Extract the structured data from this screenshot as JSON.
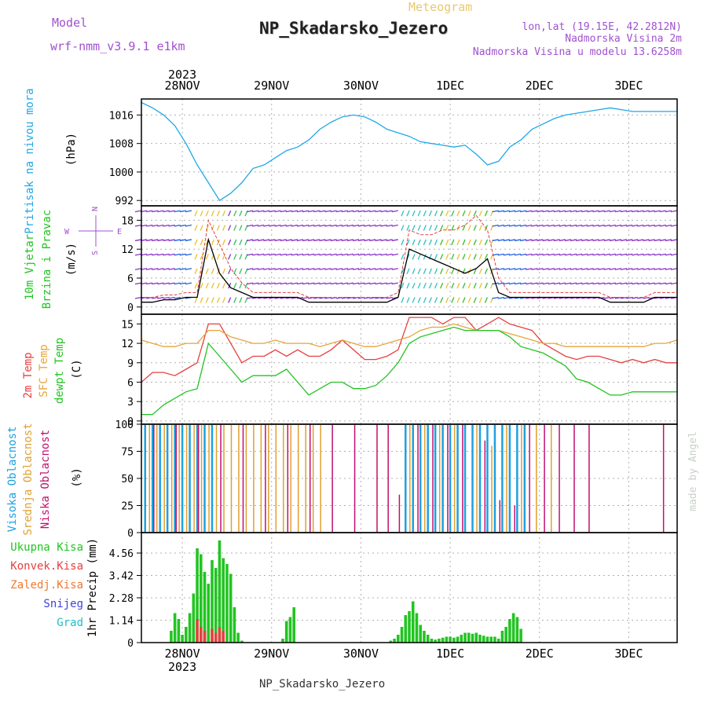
{
  "header": {
    "model_label": "Model",
    "model_name": "wrf-nmm_v3.9.1  e1km",
    "meteogram_label": "Meteogram",
    "station": "NP_Skadarsko_Jezero",
    "lonlat": "lon,lat (19.15E, 42.2812N)",
    "altitude": "Nadmorska Visina 2m",
    "model_altitude": "Nadmorska Visina u modelu 13.6258m",
    "footer_station": "NP_Skadarsko_Jezero",
    "credit": "made by Angel"
  },
  "time_axis": {
    "year": "2023",
    "days": [
      "28NOV",
      "29NOV",
      "30NOV",
      "1DEC",
      "2DEC",
      "3DEC"
    ],
    "start_hour_offset": 13,
    "total_hours": 144
  },
  "colors": {
    "pressure": "#22a7e6",
    "temp2m": "#e64040",
    "sfc_temp": "#e6a43a",
    "dewpoint": "#22c422",
    "speed": "#000000",
    "gust": "#e64040",
    "high_cloud": "#1fa0e0",
    "mid_cloud": "#e0a030",
    "low_cloud": "#c01070",
    "total_precip": "#22c422",
    "conv_precip": "#e64040",
    "frozen": "#f07830",
    "snow": "#4040e0",
    "graupel": "#20c0c0",
    "title_purple": "#a050d0"
  },
  "chart_data": [
    {
      "type": "line",
      "title": "Pritisak na nivou mora",
      "ylabel": "(hPa)",
      "yticks": [
        992,
        1000,
        1008,
        1016
      ],
      "ylim": [
        990.5,
        1020.5
      ],
      "grid": true,
      "series": [
        {
          "name": "Pritisak na nivou mora",
          "x": [
            0,
            3,
            6,
            9,
            12,
            15,
            18,
            21,
            24,
            27,
            30,
            33,
            36,
            39,
            42,
            45,
            48,
            51,
            54,
            57,
            60,
            63,
            66,
            69,
            72,
            75,
            78,
            81,
            84,
            87,
            90,
            93,
            96,
            99,
            102,
            105,
            108,
            111,
            114,
            117,
            120,
            123,
            126,
            129,
            132,
            135,
            138,
            141,
            144
          ],
          "values": [
            1019.5,
            1018,
            1016,
            1013,
            1008,
            1002,
            997,
            992,
            994,
            997,
            1001,
            1002,
            1004,
            1006,
            1007,
            1009,
            1012,
            1014,
            1015.5,
            1016,
            1015.5,
            1014,
            1012,
            1011,
            1010,
            1008.5,
            1008,
            1007.5,
            1007,
            1007.5,
            1005,
            1002,
            1003,
            1007,
            1009,
            1012,
            1013.5,
            1015,
            1016,
            1016.5,
            1017,
            1017.5,
            1018,
            1017.5,
            1017,
            1017,
            1017,
            1017,
            1017
          ]
        }
      ]
    },
    {
      "type": "line",
      "title": "10m Vjetar Brzina i Pravac",
      "ylabel": "(m/s)",
      "yticks": [
        0,
        6,
        12,
        18
      ],
      "ylim": [
        -1.5,
        21
      ],
      "grid": true,
      "compass": {
        "north": "N",
        "south": "S",
        "east": "E",
        "west": "W"
      },
      "series": [
        {
          "name": "speed",
          "x": [
            0,
            3,
            6,
            9,
            12,
            15,
            18,
            21,
            24,
            27,
            30,
            33,
            36,
            39,
            42,
            45,
            48,
            51,
            54,
            57,
            60,
            63,
            66,
            69,
            72,
            75,
            78,
            81,
            84,
            87,
            90,
            93,
            96,
            99,
            102,
            105,
            108,
            111,
            114,
            117,
            120,
            123,
            126,
            129,
            132,
            135,
            138,
            141,
            144
          ],
          "values": [
            1,
            1,
            1.5,
            1.5,
            2,
            2,
            14,
            7,
            4,
            3,
            2,
            2,
            2,
            2,
            2,
            1,
            1,
            1,
            1,
            1,
            1,
            1,
            1,
            2,
            12,
            11,
            10,
            9,
            8,
            7,
            8,
            10,
            3,
            2,
            2,
            2,
            2,
            2,
            2,
            2,
            2,
            2,
            1,
            1,
            1,
            1,
            2,
            2,
            2
          ]
        },
        {
          "name": "gust",
          "x": [
            0,
            3,
            6,
            9,
            12,
            15,
            18,
            21,
            24,
            27,
            30,
            33,
            36,
            39,
            42,
            45,
            48,
            51,
            54,
            57,
            60,
            63,
            66,
            69,
            72,
            75,
            78,
            81,
            84,
            87,
            90,
            93,
            96,
            99,
            102,
            105,
            108,
            111,
            114,
            117,
            120,
            123,
            126,
            129,
            132,
            135,
            138,
            141,
            144
          ],
          "values": [
            2,
            2,
            2.5,
            2.5,
            3,
            3,
            18,
            13,
            8,
            5,
            3,
            3,
            3,
            3,
            3,
            2,
            2,
            2,
            2,
            2,
            2,
            2,
            2,
            3,
            16,
            15,
            15,
            16,
            16,
            17,
            19,
            16,
            6,
            3,
            3,
            3,
            3,
            3,
            3,
            3,
            3,
            3,
            2,
            2,
            2,
            2,
            3,
            3,
            3
          ]
        }
      ]
    },
    {
      "type": "line",
      "title": "2m Temp / SFC Temp / dewpt Temp",
      "ylabel": "(C)",
      "yticks": [
        0,
        3,
        6,
        9,
        12,
        15
      ],
      "ylim": [
        -0.5,
        16.5
      ],
      "grid": true,
      "series": [
        {
          "name": "2m Temp",
          "x": [
            0,
            3,
            6,
            9,
            12,
            15,
            18,
            21,
            24,
            27,
            30,
            33,
            36,
            39,
            42,
            45,
            48,
            51,
            54,
            57,
            60,
            63,
            66,
            69,
            72,
            75,
            78,
            81,
            84,
            87,
            90,
            93,
            96,
            99,
            102,
            105,
            108,
            111,
            114,
            117,
            120,
            123,
            126,
            129,
            132,
            135,
            138,
            141,
            144
          ],
          "values": [
            6,
            7.5,
            7.5,
            7,
            8,
            9,
            15,
            15,
            12,
            9,
            10,
            10,
            11,
            10,
            11,
            10,
            10,
            11,
            12.5,
            11,
            9.5,
            9.5,
            10,
            11,
            16,
            16,
            16,
            15,
            16,
            16,
            14,
            15,
            16,
            15,
            14.5,
            14,
            12,
            11,
            10,
            9.5,
            10,
            10,
            9.5,
            9,
            9.5,
            9,
            9.5,
            9,
            9
          ]
        },
        {
          "name": "SFC Temp",
          "x": [
            0,
            3,
            6,
            9,
            12,
            15,
            18,
            21,
            24,
            27,
            30,
            33,
            36,
            39,
            42,
            45,
            48,
            51,
            54,
            57,
            60,
            63,
            66,
            69,
            72,
            75,
            78,
            81,
            84,
            87,
            90,
            93,
            96,
            99,
            102,
            105,
            108,
            111,
            114,
            117,
            120,
            123,
            126,
            129,
            132,
            135,
            138,
            141,
            144
          ],
          "values": [
            12.5,
            12,
            11.5,
            11.5,
            12,
            12,
            14,
            14,
            13,
            12.5,
            12,
            12,
            12.5,
            12,
            12,
            12,
            11.5,
            12,
            12.5,
            12,
            11.5,
            11.5,
            12,
            12.5,
            13,
            14,
            14.5,
            14.5,
            15,
            14.5,
            14,
            14,
            14,
            13.5,
            13,
            12.5,
            12,
            12,
            11.5,
            11.5,
            11.5,
            11.5,
            11.5,
            11.5,
            11.5,
            11.5,
            12,
            12,
            12.5
          ]
        },
        {
          "name": "dewpt Temp",
          "x": [
            0,
            3,
            6,
            9,
            12,
            15,
            18,
            21,
            24,
            27,
            30,
            33,
            36,
            39,
            42,
            45,
            48,
            51,
            54,
            57,
            60,
            63,
            66,
            69,
            72,
            75,
            78,
            81,
            84,
            87,
            90,
            93,
            96,
            99,
            102,
            105,
            108,
            111,
            114,
            117,
            120,
            123,
            126,
            129,
            132,
            135,
            138,
            141,
            144
          ],
          "values": [
            1,
            1,
            2.5,
            3.5,
            4.5,
            5,
            12,
            10,
            8,
            6,
            7,
            7,
            7,
            8,
            6,
            4,
            5,
            6,
            6,
            5,
            5,
            5.5,
            7,
            9,
            12,
            13,
            13.5,
            14,
            14.5,
            14,
            14,
            14,
            14,
            13,
            11.5,
            11,
            10.5,
            9.5,
            8.5,
            6.5,
            6,
            5,
            4,
            4,
            4.5,
            4.5,
            4.5,
            4.5,
            4.5
          ]
        }
      ]
    },
    {
      "type": "bar",
      "title": "Visoka / Srednja / Niska Oblacnost",
      "ylabel": "(%)",
      "yticks": [
        0,
        25,
        50,
        75,
        100
      ],
      "ylim": [
        0,
        100
      ],
      "grid": true,
      "series": [
        {
          "name": "Visoka Oblacnost",
          "x": [
            1,
            3,
            5,
            7,
            9,
            11,
            13,
            15,
            17,
            19,
            71,
            73,
            75,
            77,
            79,
            81,
            83,
            85,
            87,
            89,
            91,
            93,
            95,
            97,
            99,
            101,
            103
          ],
          "values": [
            100,
            100,
            100,
            100,
            100,
            100,
            100,
            100,
            100,
            100,
            100,
            100,
            100,
            100,
            100,
            100,
            100,
            100,
            100,
            100,
            100,
            100,
            100,
            100,
            100,
            100,
            100
          ]
        },
        {
          "name": "Srednja Oblacnost",
          "x": [
            2,
            4,
            6,
            8,
            10,
            12,
            14,
            16,
            18,
            20,
            22,
            24,
            26,
            28,
            30,
            32,
            34,
            36,
            38,
            40,
            42,
            44,
            46,
            48,
            72,
            76,
            80,
            84,
            90,
            94,
            98,
            102,
            106,
            110
          ],
          "values": [
            100,
            100,
            100,
            100,
            100,
            100,
            100,
            100,
            100,
            100,
            100,
            100,
            100,
            100,
            100,
            100,
            100,
            100,
            100,
            100,
            100,
            100,
            100,
            100,
            100,
            100,
            100,
            100,
            100,
            80,
            100,
            100,
            100,
            100
          ]
        },
        {
          "name": "Niska Oblacnost",
          "x": [
            3,
            9,
            15,
            21,
            27,
            33,
            39,
            45,
            51,
            57,
            63,
            66,
            69,
            74,
            78,
            82,
            86,
            92,
            96,
            100,
            104,
            108,
            112,
            116,
            120,
            140
          ],
          "values": [
            100,
            100,
            100,
            100,
            100,
            100,
            100,
            100,
            100,
            100,
            100,
            100,
            35,
            100,
            100,
            100,
            100,
            85,
            30,
            25,
            100,
            100,
            100,
            100,
            100,
            100
          ]
        }
      ]
    },
    {
      "type": "bar",
      "title": "Ukupna Kisa / Konvek.Kisa / Zaledj.Kisa / Snijeg / Grad",
      "ylabel": "1hr Precip (mm)",
      "yticks": [
        0,
        1.14,
        2.28,
        3.42,
        4.56
      ],
      "ylim": [
        0,
        5.6
      ],
      "grid": true,
      "series": [
        {
          "name": "Ukupna Kisa",
          "x": [
            8,
            9,
            10,
            11,
            12,
            13,
            14,
            15,
            16,
            17,
            18,
            19,
            20,
            21,
            22,
            23,
            24,
            25,
            26,
            27,
            38,
            39,
            40,
            41,
            67,
            68,
            69,
            70,
            71,
            72,
            73,
            74,
            75,
            76,
            77,
            78,
            79,
            80,
            81,
            82,
            83,
            84,
            85,
            86,
            87,
            88,
            89,
            90,
            91,
            92,
            93,
            94,
            95,
            96,
            97,
            98,
            99,
            100,
            101,
            102
          ],
          "values": [
            0.6,
            1.5,
            1.2,
            0.4,
            0.8,
            1.5,
            2.5,
            4.8,
            4.5,
            3.6,
            3.0,
            4.2,
            3.8,
            5.2,
            4.3,
            4.0,
            3.5,
            1.8,
            0.5,
            0.1,
            0.2,
            1.1,
            1.3,
            1.8,
            0.1,
            0.2,
            0.4,
            0.8,
            1.4,
            1.6,
            2.1,
            1.5,
            0.9,
            0.6,
            0.4,
            0.2,
            0.15,
            0.2,
            0.25,
            0.3,
            0.3,
            0.25,
            0.3,
            0.4,
            0.5,
            0.5,
            0.45,
            0.5,
            0.4,
            0.35,
            0.3,
            0.3,
            0.3,
            0.2,
            0.6,
            0.8,
            1.2,
            1.5,
            1.3,
            0.7
          ]
        },
        {
          "name": "Konvek.Kisa",
          "x": [
            15,
            16,
            17,
            19,
            20,
            21,
            22
          ],
          "values": [
            1.2,
            0.8,
            0.6,
            0.7,
            0.5,
            0.8,
            0.6
          ]
        }
      ]
    }
  ],
  "left_labels": {
    "p1": [
      "Pritisak na nivou mora",
      "(hPa)"
    ],
    "p2": [
      "10m Vjetar",
      "Brzina i Pravac",
      "(m/s)"
    ],
    "p3": [
      "2m Temp",
      "SFC Temp",
      "dewpt Temp",
      "(C)"
    ],
    "p4": [
      "Visoka Oblacnost",
      "Srednja Oblacnost",
      "Niska Oblacnost",
      "(%)"
    ],
    "p5": [
      "Ukupna Kisa",
      "Konvek.Kisa",
      "Zaledj.Kisa",
      "Snijeg",
      "Grad",
      "1hr Precip (mm)"
    ]
  }
}
